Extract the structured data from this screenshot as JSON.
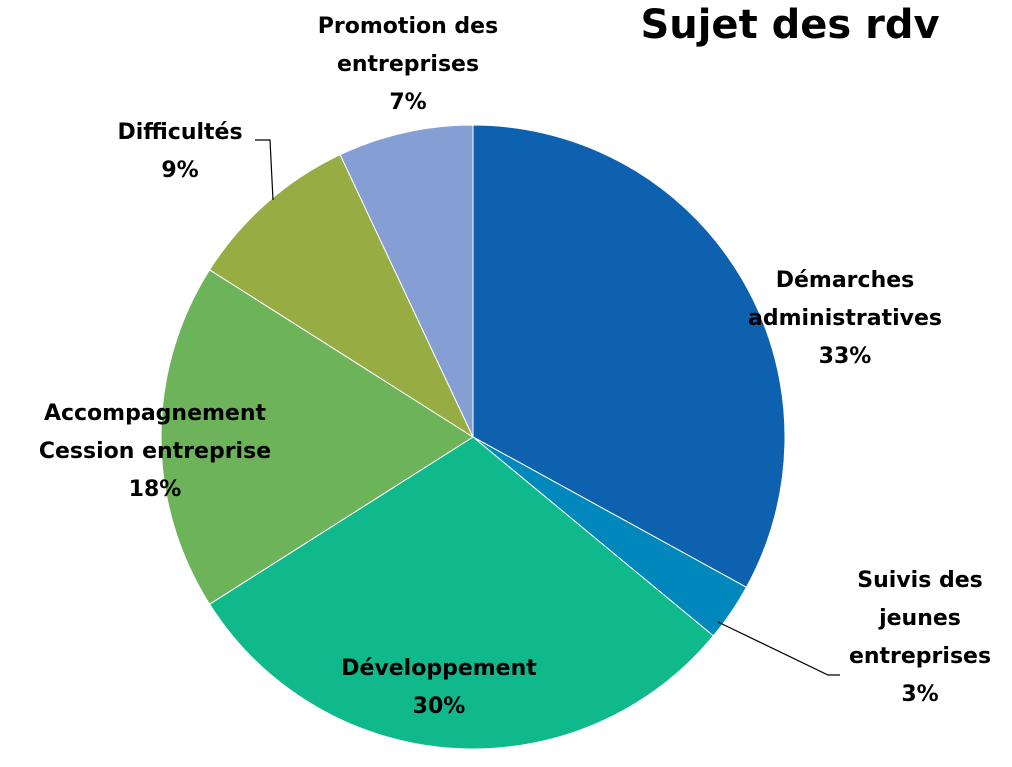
{
  "chart_data": {
    "type": "pie",
    "title": "Sujet des rdv",
    "categories": [
      "Démarches administratives",
      "Suivis des jeunes entreprises",
      "Développement",
      "Accompagnement Cession entreprise",
      "Difficultés",
      "Promotion des entreprises"
    ],
    "values": [
      33,
      3,
      30,
      18,
      9,
      7
    ],
    "value_labels": [
      "33%",
      "3%",
      "30%",
      "18%",
      "9%",
      "7%"
    ],
    "colors": [
      "#0e61ae",
      "#0088bd",
      "#10b98c",
      "#6db35a",
      "#97ad44",
      "#859fd4"
    ]
  }
}
